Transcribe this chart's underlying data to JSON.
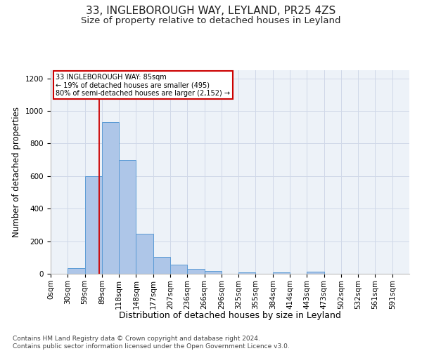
{
  "title1": "33, INGLEBOROUGH WAY, LEYLAND, PR25 4ZS",
  "title2": "Size of property relative to detached houses in Leyland",
  "xlabel": "Distribution of detached houses by size in Leyland",
  "ylabel": "Number of detached properties",
  "footnote": "Contains HM Land Registry data © Crown copyright and database right 2024.\nContains public sector information licensed under the Open Government Licence v3.0.",
  "bin_labels": [
    "0sqm",
    "30sqm",
    "59sqm",
    "89sqm",
    "118sqm",
    "148sqm",
    "177sqm",
    "207sqm",
    "236sqm",
    "266sqm",
    "296sqm",
    "325sqm",
    "355sqm",
    "384sqm",
    "414sqm",
    "443sqm",
    "473sqm",
    "502sqm",
    "532sqm",
    "561sqm",
    "591sqm"
  ],
  "bar_values": [
    0,
    35,
    600,
    930,
    700,
    245,
    105,
    55,
    30,
    18,
    0,
    10,
    0,
    10,
    0,
    12,
    0,
    0,
    0,
    0,
    0
  ],
  "bar_color": "#aec6e8",
  "bar_edge_color": "#5b9bd5",
  "vline_x": 2.83,
  "annotation_text": "33 INGLEBOROUGH WAY: 85sqm\n← 19% of detached houses are smaller (495)\n80% of semi-detached houses are larger (2,152) →",
  "annotation_box_color": "#ffffff",
  "annotation_box_edge_color": "#cc0000",
  "ylim": [
    0,
    1250
  ],
  "yticks": [
    0,
    200,
    400,
    600,
    800,
    1000,
    1200
  ],
  "title1_fontsize": 11,
  "title2_fontsize": 9.5,
  "xlabel_fontsize": 9,
  "ylabel_fontsize": 8.5,
  "tick_fontsize": 7.5,
  "footnote_fontsize": 6.5,
  "grid_color": "#d0d8e8",
  "bg_color": "#edf2f8"
}
